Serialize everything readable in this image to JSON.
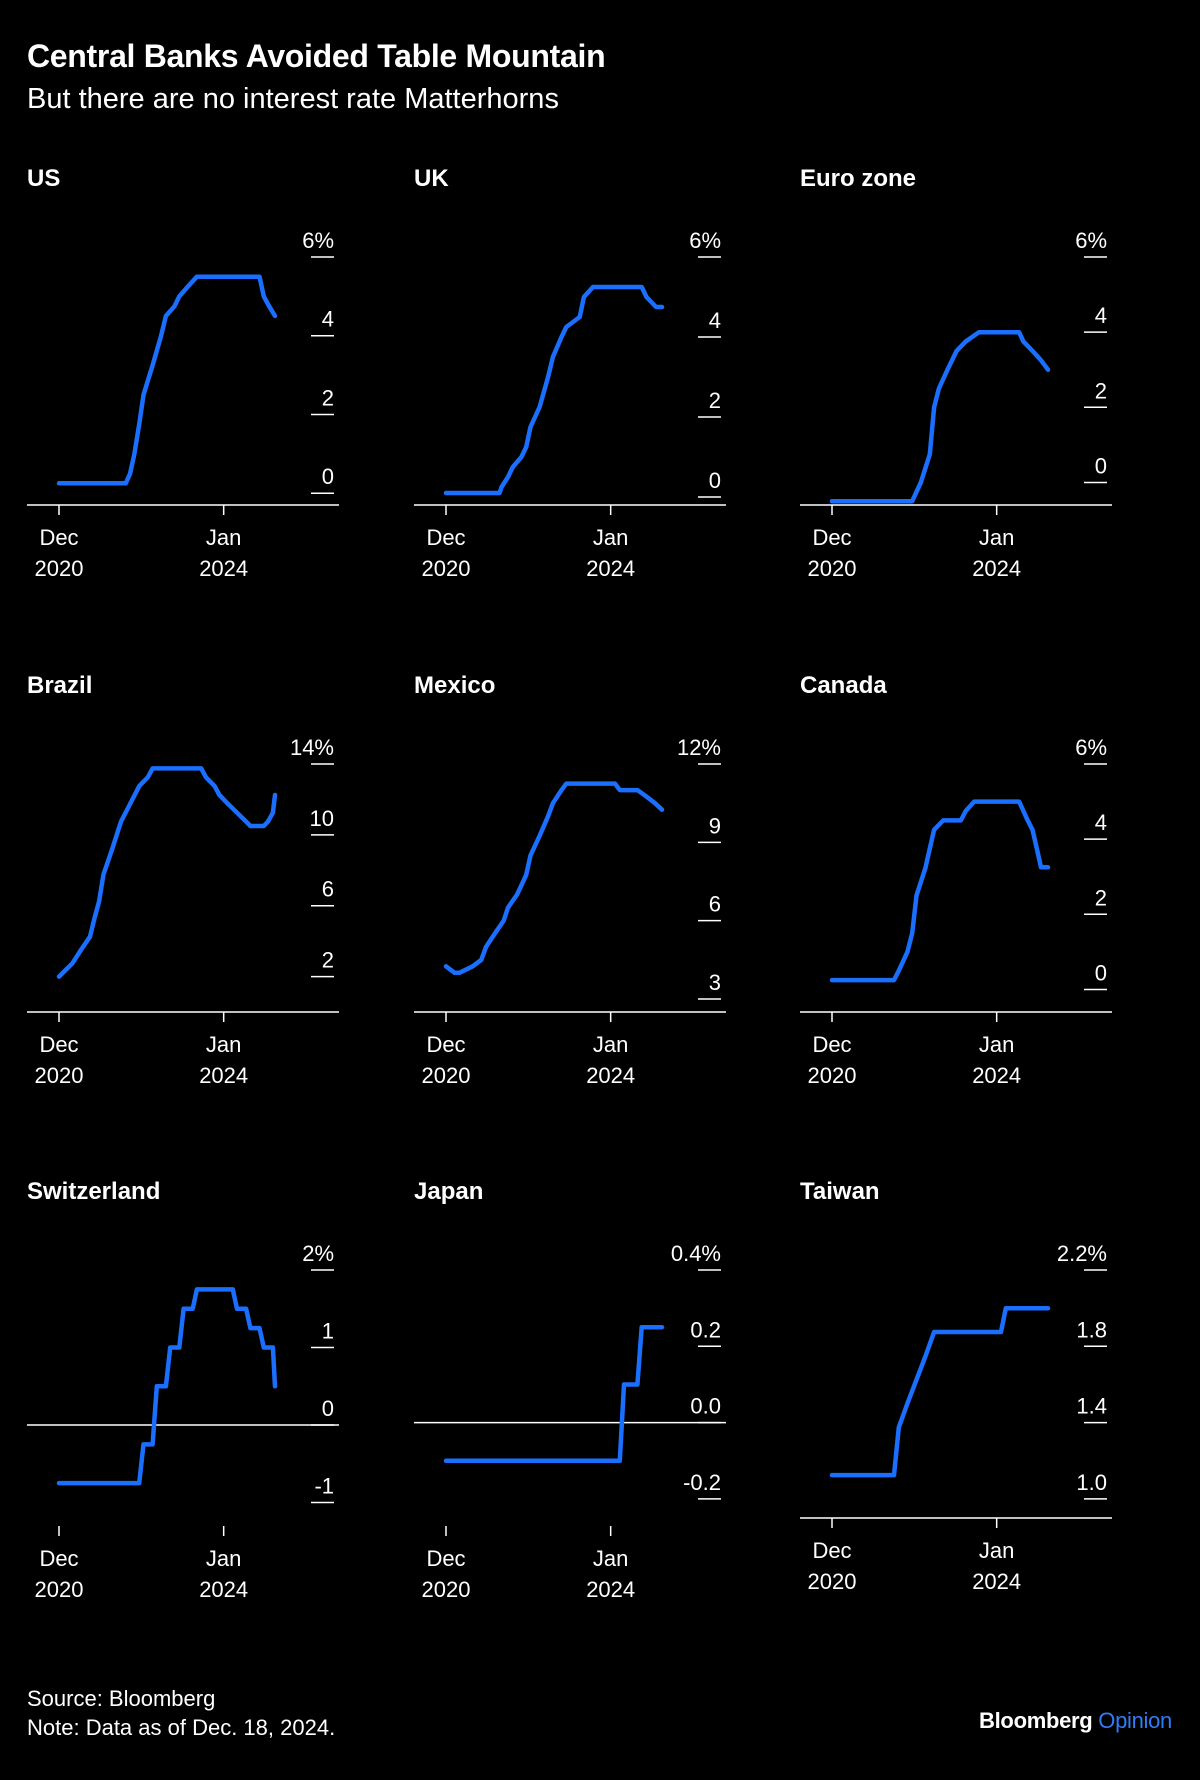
{
  "title": "Central Banks Avoided Table Mountain",
  "subtitle": "But there are no interest rate Matterhorns",
  "footer": {
    "source": "Source: Bloomberg",
    "note": "Note: Data as of Dec. 18, 2024."
  },
  "brand": {
    "name": "Bloomberg",
    "suffix": "Opinion"
  },
  "colors": {
    "background": "#000000",
    "line": "#1a6fff",
    "text": "#ffffff",
    "axis": "#ffffff"
  },
  "chart_data": [
    {
      "type": "line",
      "title": "US",
      "x_range": [
        2020.92,
        2024.96
      ],
      "x_ticks": [
        {
          "x": 2020.92,
          "label": [
            "Dec",
            "2020"
          ]
        },
        {
          "x": 2024.0,
          "label": [
            "Jan",
            "2024"
          ]
        }
      ],
      "y_ticks": [
        {
          "v": 0,
          "label": "0"
        },
        {
          "v": 2,
          "label": "2"
        },
        {
          "v": 4,
          "label": "4"
        },
        {
          "v": 6,
          "label": "6%"
        }
      ],
      "ylim": [
        -0.3,
        6
      ],
      "baseline": -0.3,
      "series": [
        {
          "points": [
            [
              2020.92,
              0.25
            ],
            [
              2022.17,
              0.25
            ],
            [
              2022.25,
              0.5
            ],
            [
              2022.33,
              1.0
            ],
            [
              2022.42,
              1.75
            ],
            [
              2022.5,
              2.5
            ],
            [
              2022.67,
              3.25
            ],
            [
              2022.83,
              4.0
            ],
            [
              2022.92,
              4.5
            ],
            [
              2023.08,
              4.75
            ],
            [
              2023.17,
              5.0
            ],
            [
              2023.33,
              5.25
            ],
            [
              2023.5,
              5.5
            ],
            [
              2024.67,
              5.5
            ],
            [
              2024.75,
              5.0
            ],
            [
              2024.85,
              4.75
            ],
            [
              2024.96,
              4.5
            ]
          ]
        }
      ]
    },
    {
      "type": "line",
      "title": "UK",
      "x_range": [
        2020.92,
        2024.96
      ],
      "x_ticks": [
        {
          "x": 2020.92,
          "label": [
            "Dec",
            "2020"
          ]
        },
        {
          "x": 2024.0,
          "label": [
            "Jan",
            "2024"
          ]
        }
      ],
      "y_ticks": [
        {
          "v": 0,
          "label": "0"
        },
        {
          "v": 2,
          "label": "2"
        },
        {
          "v": 4,
          "label": "4"
        },
        {
          "v": 6,
          "label": "6%"
        }
      ],
      "ylim": [
        -0.2,
        6
      ],
      "baseline": -0.2,
      "series": [
        {
          "points": [
            [
              2020.92,
              0.1
            ],
            [
              2021.92,
              0.1
            ],
            [
              2021.96,
              0.25
            ],
            [
              2022.08,
              0.5
            ],
            [
              2022.17,
              0.75
            ],
            [
              2022.33,
              1.0
            ],
            [
              2022.42,
              1.25
            ],
            [
              2022.5,
              1.75
            ],
            [
              2022.67,
              2.25
            ],
            [
              2022.83,
              3.0
            ],
            [
              2022.92,
              3.5
            ],
            [
              2023.08,
              4.0
            ],
            [
              2023.17,
              4.25
            ],
            [
              2023.42,
              4.5
            ],
            [
              2023.5,
              5.0
            ],
            [
              2023.67,
              5.25
            ],
            [
              2024.58,
              5.25
            ],
            [
              2024.67,
              5.0
            ],
            [
              2024.85,
              4.75
            ],
            [
              2024.96,
              4.75
            ]
          ]
        }
      ]
    },
    {
      "type": "line",
      "title": "Euro zone",
      "x_range": [
        2020.92,
        2024.96
      ],
      "x_ticks": [
        {
          "x": 2020.92,
          "label": [
            "Dec",
            "2020"
          ]
        },
        {
          "x": 2024.0,
          "label": [
            "Jan",
            "2024"
          ]
        }
      ],
      "y_ticks": [
        {
          "v": 0,
          "label": "0"
        },
        {
          "v": 2,
          "label": "2"
        },
        {
          "v": 4,
          "label": "4"
        },
        {
          "v": 6,
          "label": "6%"
        }
      ],
      "ylim": [
        -0.6,
        6
      ],
      "baseline": -0.6,
      "series": [
        {
          "points": [
            [
              2020.92,
              -0.5
            ],
            [
              2022.42,
              -0.5
            ],
            [
              2022.58,
              0.0
            ],
            [
              2022.75,
              0.75
            ],
            [
              2022.83,
              2.0
            ],
            [
              2022.92,
              2.5
            ],
            [
              2023.08,
              3.0
            ],
            [
              2023.25,
              3.5
            ],
            [
              2023.42,
              3.75
            ],
            [
              2023.67,
              4.0
            ],
            [
              2024.42,
              4.0
            ],
            [
              2024.5,
              3.75
            ],
            [
              2024.67,
              3.5
            ],
            [
              2024.83,
              3.25
            ],
            [
              2024.96,
              3.0
            ]
          ]
        }
      ]
    },
    {
      "type": "line",
      "title": "Brazil",
      "x_range": [
        2020.92,
        2024.96
      ],
      "x_ticks": [
        {
          "x": 2020.92,
          "label": [
            "Dec",
            "2020"
          ]
        },
        {
          "x": 2024.0,
          "label": [
            "Jan",
            "2024"
          ]
        }
      ],
      "y_ticks": [
        {
          "v": 2,
          "label": "2"
        },
        {
          "v": 6,
          "label": "6"
        },
        {
          "v": 10,
          "label": "10"
        },
        {
          "v": 14,
          "label": "14%"
        }
      ],
      "ylim": [
        0,
        14
      ],
      "baseline": 0,
      "series": [
        {
          "points": [
            [
              2020.92,
              2.0
            ],
            [
              2021.17,
              2.75
            ],
            [
              2021.33,
              3.5
            ],
            [
              2021.5,
              4.25
            ],
            [
              2021.58,
              5.25
            ],
            [
              2021.67,
              6.25
            ],
            [
              2021.75,
              7.75
            ],
            [
              2021.92,
              9.25
            ],
            [
              2022.08,
              10.75
            ],
            [
              2022.25,
              11.75
            ],
            [
              2022.42,
              12.75
            ],
            [
              2022.58,
              13.25
            ],
            [
              2022.67,
              13.75
            ],
            [
              2023.58,
              13.75
            ],
            [
              2023.67,
              13.25
            ],
            [
              2023.83,
              12.75
            ],
            [
              2023.92,
              12.25
            ],
            [
              2024.08,
              11.75
            ],
            [
              2024.25,
              11.25
            ],
            [
              2024.42,
              10.75
            ],
            [
              2024.5,
              10.5
            ],
            [
              2024.75,
              10.5
            ],
            [
              2024.83,
              10.75
            ],
            [
              2024.92,
              11.25
            ],
            [
              2024.96,
              12.25
            ]
          ]
        }
      ]
    },
    {
      "type": "line",
      "title": "Mexico",
      "x_range": [
        2020.92,
        2024.96
      ],
      "x_ticks": [
        {
          "x": 2020.92,
          "label": [
            "Dec",
            "2020"
          ]
        },
        {
          "x": 2024.0,
          "label": [
            "Jan",
            "2024"
          ]
        }
      ],
      "y_ticks": [
        {
          "v": 3,
          "label": "3"
        },
        {
          "v": 6,
          "label": "6"
        },
        {
          "v": 9,
          "label": "9"
        },
        {
          "v": 12,
          "label": "12%"
        }
      ],
      "ylim": [
        2.5,
        12
      ],
      "baseline": 2.5,
      "series": [
        {
          "points": [
            [
              2020.92,
              4.25
            ],
            [
              2021.08,
              4.0
            ],
            [
              2021.17,
              4.0
            ],
            [
              2021.42,
              4.25
            ],
            [
              2021.58,
              4.5
            ],
            [
              2021.67,
              5.0
            ],
            [
              2021.83,
              5.5
            ],
            [
              2022.0,
              6.0
            ],
            [
              2022.08,
              6.5
            ],
            [
              2022.25,
              7.0
            ],
            [
              2022.42,
              7.75
            ],
            [
              2022.5,
              8.5
            ],
            [
              2022.67,
              9.25
            ],
            [
              2022.83,
              10.0
            ],
            [
              2022.92,
              10.5
            ],
            [
              2023.08,
              11.0
            ],
            [
              2023.17,
              11.25
            ],
            [
              2024.08,
              11.25
            ],
            [
              2024.17,
              11.0
            ],
            [
              2024.5,
              11.0
            ],
            [
              2024.67,
              10.75
            ],
            [
              2024.83,
              10.5
            ],
            [
              2024.96,
              10.25
            ]
          ]
        }
      ]
    },
    {
      "type": "line",
      "title": "Canada",
      "x_range": [
        2020.92,
        2024.96
      ],
      "x_ticks": [
        {
          "x": 2020.92,
          "label": [
            "Dec",
            "2020"
          ]
        },
        {
          "x": 2024.0,
          "label": [
            "Jan",
            "2024"
          ]
        }
      ],
      "y_ticks": [
        {
          "v": 0,
          "label": "0"
        },
        {
          "v": 2,
          "label": "2"
        },
        {
          "v": 4,
          "label": "4"
        },
        {
          "v": 6,
          "label": "6%"
        }
      ],
      "ylim": [
        -0.6,
        6
      ],
      "baseline": -0.6,
      "series": [
        {
          "points": [
            [
              2020.92,
              0.25
            ],
            [
              2022.08,
              0.25
            ],
            [
              2022.17,
              0.5
            ],
            [
              2022.33,
              1.0
            ],
            [
              2022.42,
              1.5
            ],
            [
              2022.5,
              2.5
            ],
            [
              2022.67,
              3.25
            ],
            [
              2022.75,
              3.75
            ],
            [
              2022.83,
              4.25
            ],
            [
              2023.0,
              4.5
            ],
            [
              2023.33,
              4.5
            ],
            [
              2023.42,
              4.75
            ],
            [
              2023.58,
              5.0
            ],
            [
              2024.42,
              5.0
            ],
            [
              2024.5,
              4.75
            ],
            [
              2024.58,
              4.5
            ],
            [
              2024.67,
              4.25
            ],
            [
              2024.75,
              3.75
            ],
            [
              2024.83,
              3.25
            ],
            [
              2024.96,
              3.25
            ]
          ]
        }
      ]
    },
    {
      "type": "line",
      "title": "Switzerland",
      "x_range": [
        2020.92,
        2024.96
      ],
      "x_ticks": [
        {
          "x": 2020.92,
          "label": [
            "Dec",
            "2020"
          ]
        },
        {
          "x": 2024.0,
          "label": [
            "Jan",
            "2024"
          ]
        }
      ],
      "y_ticks": [
        {
          "v": -1,
          "label": "-1"
        },
        {
          "v": 0,
          "label": "0"
        },
        {
          "v": 1,
          "label": "1"
        },
        {
          "v": 2,
          "label": "2%"
        }
      ],
      "ylim": [
        -1.2,
        2
      ],
      "baseline": 0,
      "series": [
        {
          "points": [
            [
              2020.92,
              -0.75
            ],
            [
              2022.42,
              -0.75
            ],
            [
              2022.5,
              -0.25
            ],
            [
              2022.67,
              -0.25
            ],
            [
              2022.75,
              0.5
            ],
            [
              2022.92,
              0.5
            ],
            [
              2023.0,
              1.0
            ],
            [
              2023.17,
              1.0
            ],
            [
              2023.25,
              1.5
            ],
            [
              2023.42,
              1.5
            ],
            [
              2023.5,
              1.75
            ],
            [
              2024.17,
              1.75
            ],
            [
              2024.25,
              1.5
            ],
            [
              2024.42,
              1.5
            ],
            [
              2024.5,
              1.25
            ],
            [
              2024.67,
              1.25
            ],
            [
              2024.75,
              1.0
            ],
            [
              2024.92,
              1.0
            ],
            [
              2024.96,
              0.5
            ]
          ]
        }
      ]
    },
    {
      "type": "line",
      "title": "Japan",
      "x_range": [
        2020.92,
        2024.96
      ],
      "x_ticks": [
        {
          "x": 2020.92,
          "label": [
            "Dec",
            "2020"
          ]
        },
        {
          "x": 2024.0,
          "label": [
            "Jan",
            "2024"
          ]
        }
      ],
      "y_ticks": [
        {
          "v": -0.2,
          "label": "-0.2"
        },
        {
          "v": 0,
          "label": "0.0"
        },
        {
          "v": 0.2,
          "label": "0.2"
        },
        {
          "v": 0.4,
          "label": "0.4%"
        }
      ],
      "ylim": [
        -0.25,
        0.4
      ],
      "baseline": 0,
      "series": [
        {
          "points": [
            [
              2020.92,
              -0.1
            ],
            [
              2024.17,
              -0.1
            ],
            [
              2024.25,
              0.1
            ],
            [
              2024.5,
              0.1
            ],
            [
              2024.58,
              0.25
            ],
            [
              2024.96,
              0.25
            ]
          ]
        }
      ]
    },
    {
      "type": "line",
      "title": "Taiwan",
      "x_range": [
        2020.92,
        2024.96
      ],
      "x_ticks": [
        {
          "x": 2020.92,
          "label": [
            "Dec",
            "2020"
          ]
        },
        {
          "x": 2024.0,
          "label": [
            "Jan",
            "2024"
          ]
        }
      ],
      "y_ticks": [
        {
          "v": 1.0,
          "label": "1.0"
        },
        {
          "v": 1.4,
          "label": "1.4"
        },
        {
          "v": 1.8,
          "label": "1.8"
        },
        {
          "v": 2.2,
          "label": "2.2%"
        }
      ],
      "ylim": [
        0.9,
        2.2
      ],
      "baseline": 0.9,
      "series": [
        {
          "points": [
            [
              2020.92,
              1.125
            ],
            [
              2022.08,
              1.125
            ],
            [
              2022.17,
              1.375
            ],
            [
              2022.33,
              1.5
            ],
            [
              2022.5,
              1.625
            ],
            [
              2022.67,
              1.75
            ],
            [
              2022.83,
              1.875
            ],
            [
              2024.08,
              1.875
            ],
            [
              2024.17,
              2.0
            ],
            [
              2024.96,
              2.0
            ]
          ]
        }
      ]
    }
  ]
}
